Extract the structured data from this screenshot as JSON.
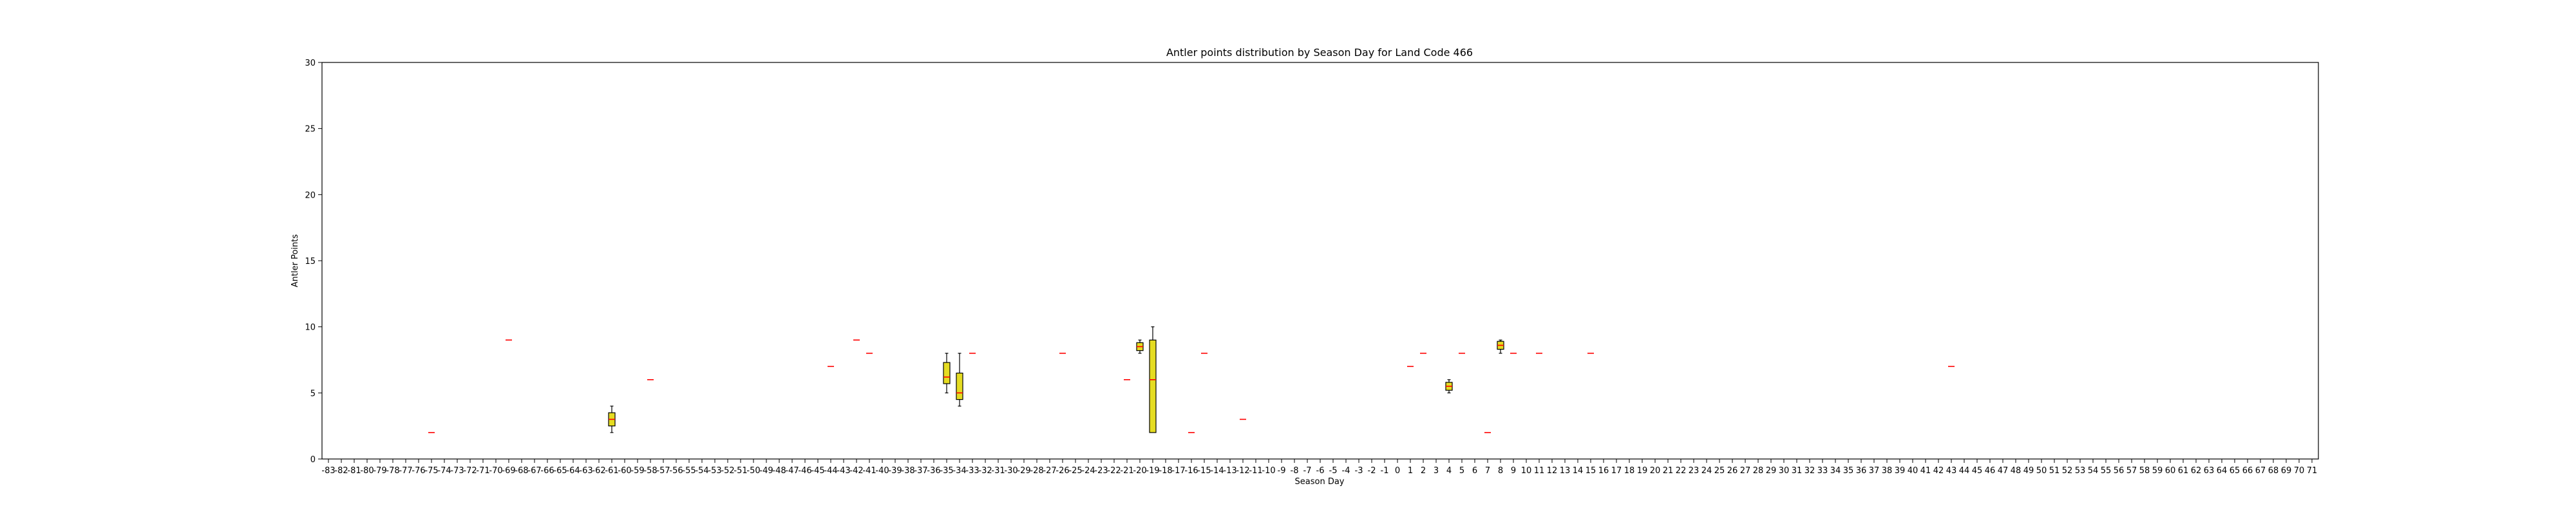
{
  "chart_data": {
    "type": "box",
    "title": "Antler points distribution by Season Day for Land Code 466",
    "xlabel": "Season Day",
    "ylabel": "Antler Points",
    "ylim": [
      0,
      30
    ],
    "yticks": [
      0,
      5,
      10,
      15,
      20,
      25,
      30
    ],
    "x_range": [
      -83,
      71
    ],
    "grid": false,
    "colors": {
      "box_fill": "#e5dc22",
      "median": "#ff0000",
      "whisker": "#000000"
    },
    "boxes": [
      {
        "day": -75,
        "min": 2,
        "q1": 2,
        "median": 2,
        "q3": 2,
        "max": 2
      },
      {
        "day": -69,
        "min": 9,
        "q1": 9,
        "median": 9,
        "q3": 9,
        "max": 9
      },
      {
        "day": -61,
        "min": 2,
        "q1": 2.5,
        "median": 3,
        "q3": 3.5,
        "max": 4
      },
      {
        "day": -58,
        "min": 6,
        "q1": 6,
        "median": 6,
        "q3": 6,
        "max": 6
      },
      {
        "day": -44,
        "min": 7,
        "q1": 7,
        "median": 7,
        "q3": 7,
        "max": 7
      },
      {
        "day": -42,
        "min": 9,
        "q1": 9,
        "median": 9,
        "q3": 9,
        "max": 9
      },
      {
        "day": -41,
        "min": 8,
        "q1": 8,
        "median": 8,
        "q3": 8,
        "max": 8
      },
      {
        "day": -35,
        "min": 5,
        "q1": 5.7,
        "median": 6.2,
        "q3": 7.3,
        "max": 8
      },
      {
        "day": -34,
        "min": 4,
        "q1": 4.5,
        "median": 5,
        "q3": 6.5,
        "max": 8
      },
      {
        "day": -33,
        "min": 8,
        "q1": 8,
        "median": 8,
        "q3": 8,
        "max": 8
      },
      {
        "day": -26,
        "min": 8,
        "q1": 8,
        "median": 8,
        "q3": 8,
        "max": 8
      },
      {
        "day": -21,
        "min": 6,
        "q1": 6,
        "median": 6,
        "q3": 6,
        "max": 6
      },
      {
        "day": -20,
        "min": 8,
        "q1": 8.2,
        "median": 8.5,
        "q3": 8.8,
        "max": 9
      },
      {
        "day": -19,
        "min": 2,
        "q1": 2,
        "median": 6,
        "q3": 9,
        "max": 10
      },
      {
        "day": -16,
        "min": 2,
        "q1": 2,
        "median": 2,
        "q3": 2,
        "max": 2
      },
      {
        "day": -15,
        "min": 8,
        "q1": 8,
        "median": 8,
        "q3": 8,
        "max": 8
      },
      {
        "day": -12,
        "min": 3,
        "q1": 3,
        "median": 3,
        "q3": 3,
        "max": 3
      },
      {
        "day": 1,
        "min": 7,
        "q1": 7,
        "median": 7,
        "q3": 7,
        "max": 7
      },
      {
        "day": 2,
        "min": 8,
        "q1": 8,
        "median": 8,
        "q3": 8,
        "max": 8
      },
      {
        "day": 4,
        "min": 5,
        "q1": 5.2,
        "median": 5.5,
        "q3": 5.8,
        "max": 6
      },
      {
        "day": 5,
        "min": 8,
        "q1": 8,
        "median": 8,
        "q3": 8,
        "max": 8
      },
      {
        "day": 7,
        "min": 2,
        "q1": 2,
        "median": 2,
        "q3": 2,
        "max": 2
      },
      {
        "day": 8,
        "min": 8,
        "q1": 8.3,
        "median": 8.6,
        "q3": 8.9,
        "max": 9
      },
      {
        "day": 9,
        "min": 8,
        "q1": 8,
        "median": 8,
        "q3": 8,
        "max": 8
      },
      {
        "day": 11,
        "min": 8,
        "q1": 8,
        "median": 8,
        "q3": 8,
        "max": 8
      },
      {
        "day": 15,
        "min": 8,
        "q1": 8,
        "median": 8,
        "q3": 8,
        "max": 8
      },
      {
        "day": 43,
        "min": 7,
        "q1": 7,
        "median": 7,
        "q3": 7,
        "max": 7
      }
    ]
  }
}
